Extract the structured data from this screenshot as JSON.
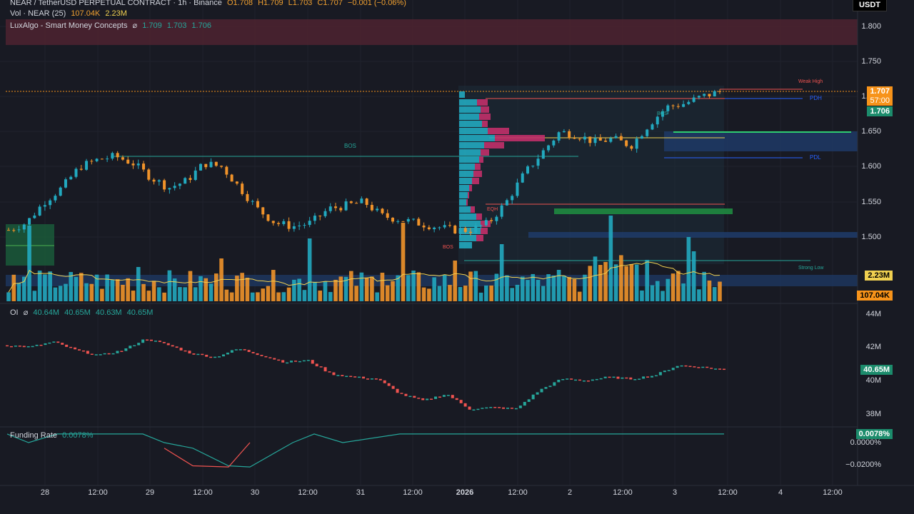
{
  "header": {
    "symbol": "NEAR / TetherUSD PERPETUAL CONTRACT · 1h · Binance",
    "open": "O1.708",
    "high": "H1.709",
    "low": "L1.703",
    "close": "C1.707",
    "change": "−0.001 (−0.06%)",
    "vol_label": "Vol · NEAR (25)",
    "vol_value": "107.04K",
    "vol_ma": "2.23M",
    "indicator_label": "LuxAlgo - Smart Money Concepts",
    "indicator_v1": "1.709",
    "indicator_v2": "1.703",
    "indicator_v3": "1.706"
  },
  "currency": "USDT",
  "price_axis": [
    "1.800",
    "1.750",
    "1.700",
    "1.650",
    "1.600",
    "1.550",
    "1.500"
  ],
  "price_tags": {
    "last": "1.707",
    "countdown": "57:00",
    "indicator": "1.706",
    "vol_ma": "2.23M",
    "vol": "107.04K"
  },
  "oi": {
    "label": "OI",
    "v1": "40.64M",
    "v2": "40.65M",
    "v3": "40.63M",
    "v4": "40.65M",
    "axis": [
      "44M",
      "42M",
      "40M",
      "38M"
    ],
    "tag": "40.65M"
  },
  "funding": {
    "label": "Funding Rate",
    "value": "0.0078%",
    "axis": [
      "0.0000%",
      "−0.0200%"
    ],
    "tag": "0.0078%"
  },
  "time_axis": [
    "28",
    "12:00",
    "29",
    "12:00",
    "30",
    "12:00",
    "31",
    "12:00",
    "2026",
    "12:00",
    "2",
    "12:00",
    "3",
    "12:00",
    "4",
    "12:00"
  ],
  "annotations": {
    "bos_main": "BOS",
    "bos_small": "BOS",
    "bos_low": "BOS",
    "eqh": "EQH",
    "weak_high": "Weak High",
    "strong_low": "Strong Low",
    "pdh": "PDH",
    "pdl": "PDL"
  },
  "colors": {
    "background": "#181a23",
    "bull": "#22a9bf",
    "bear": "#f0932a",
    "oi_up": "#26a69a",
    "oi_down": "#ef5350",
    "last_price": "#f7931a",
    "indicator": "#26a69a"
  },
  "chart_data": [
    {
      "type": "candlestick",
      "title": "NEAR / TetherUSD PERPETUAL CONTRACT · 1h · Binance",
      "ylim": [
        1.45,
        1.82
      ],
      "y_ticks": [
        1.5,
        1.55,
        1.6,
        1.65,
        1.7,
        1.75,
        1.8
      ],
      "x_ticks": [
        "28",
        "12:00",
        "29",
        "12:00",
        "30",
        "12:00",
        "31",
        "12:00",
        "2026",
        "12:00",
        "2",
        "12:00",
        "3",
        "12:00",
        "4",
        "12:00"
      ],
      "close_path": [
        1.51,
        1.52,
        1.55,
        1.57,
        1.6,
        1.61,
        1.615,
        1.605,
        1.585,
        1.57,
        1.58,
        1.605,
        1.6,
        1.57,
        1.54,
        1.52,
        1.515,
        1.52,
        1.54,
        1.545,
        1.55,
        1.53,
        1.525,
        1.52,
        1.515,
        1.51,
        1.51,
        1.52,
        1.55,
        1.59,
        1.62,
        1.65,
        1.645,
        1.635,
        1.64,
        1.63,
        1.66,
        1.685,
        1.69,
        1.7,
        1.707
      ]
    },
    {
      "type": "line",
      "title": "OI",
      "ylim": [
        37.5,
        44.5
      ],
      "y_ticks": [
        38,
        40,
        42,
        44
      ],
      "unit": "M",
      "values": [
        42.1,
        42.0,
        42.3,
        41.8,
        41.5,
        41.8,
        42.5,
        42.1,
        41.6,
        41.4,
        41.9,
        41.5,
        41.1,
        41.2,
        40.4,
        40.2,
        40.1,
        39.2,
        38.8,
        39.2,
        38.3,
        38.4,
        38.3,
        39.4,
        40.1,
        40.0,
        40.2,
        40.1,
        40.3,
        40.9,
        40.8,
        40.65
      ]
    },
    {
      "type": "line",
      "title": "Funding Rate",
      "unit": "%",
      "values": [
        0.0078,
        0.0,
        0.0078,
        0.0078,
        0.0,
        -0.005,
        -0.021,
        -0.022,
        0.0,
        0.0078,
        0.0,
        0.0078,
        0.0078,
        0.0078,
        0.0078,
        0.0078,
        0.0078
      ]
    }
  ]
}
